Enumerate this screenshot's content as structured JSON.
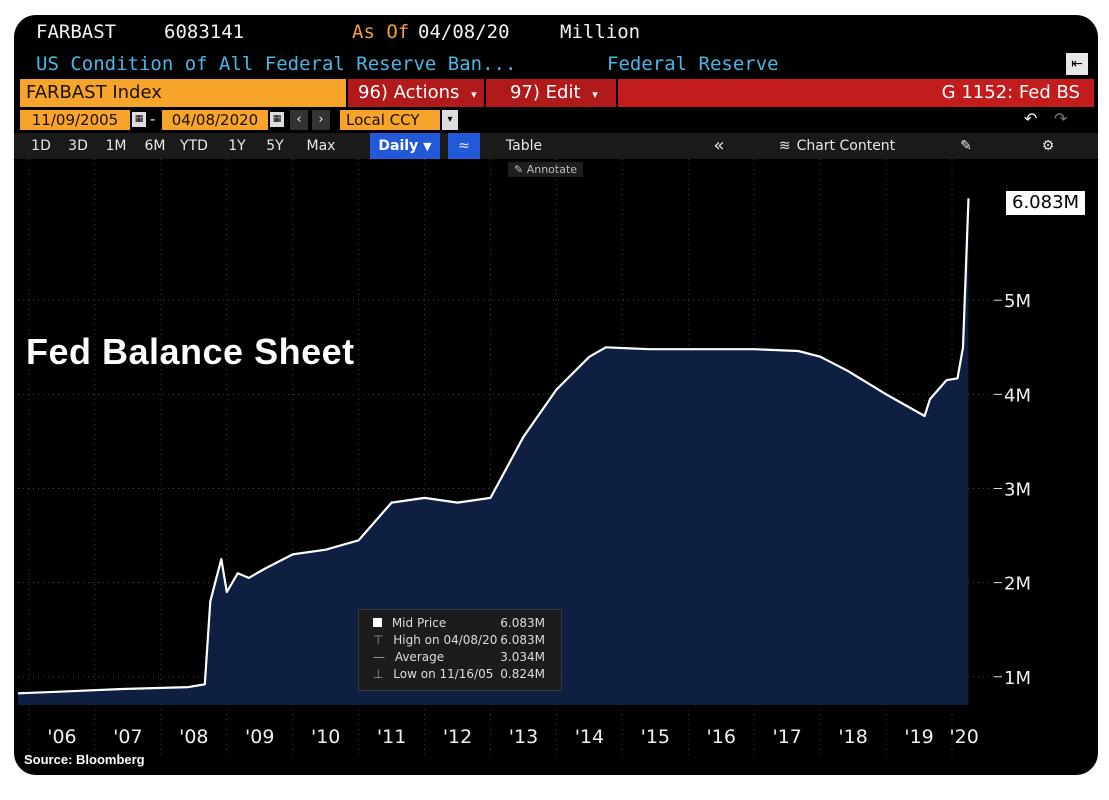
{
  "header": {
    "ticker": "FARBAST",
    "last_value": "6083141",
    "as_of_label": "As Of",
    "as_of_date": "04/08/20",
    "units": "Million",
    "description": "US Condition of All Federal Reserve Ban...",
    "source_name": "Federal Reserve",
    "index_name": "FARBAST Index",
    "actions_label": "96) Actions",
    "edit_label": "97) Edit",
    "function_label": "G 1152: Fed BS",
    "start_date": "11/09/2005",
    "date_separator": "-",
    "end_date": "04/08/2020",
    "currency": "Local CCY"
  },
  "toolbar": {
    "ranges": [
      "1D",
      "3D",
      "1M",
      "6M",
      "YTD",
      "1Y",
      "5Y",
      "Max"
    ],
    "frequency": "Daily",
    "table_label": "Table",
    "chart_content_label": "Chart Content",
    "annotate_label": "Annotate"
  },
  "overlay": {
    "title": "Fed Balance Sheet",
    "source": "Source: Bloomberg",
    "last_price_label": "6.083M"
  },
  "legend": {
    "items": [
      {
        "label": "Mid Price",
        "value": "6.083M"
      },
      {
        "label": "High on 04/08/20",
        "value": "6.083M"
      },
      {
        "label": "Average",
        "value": "3.034M"
      },
      {
        "label": "Low on 11/16/05",
        "value": "0.824M"
      }
    ]
  },
  "colors": {
    "background": "#000000",
    "area_fill": "#0f2145",
    "line": "#ffffff",
    "accent_orange": "#f7a42b",
    "accent_red": "#b01a1a",
    "text_cyan": "#49b7e6"
  },
  "chart_data": {
    "type": "area",
    "title": "Fed Balance Sheet",
    "series": [
      {
        "name": "Mid Price",
        "x": [
          "2005-11",
          "2006-06",
          "2007-06",
          "2008-06",
          "2008-09",
          "2008-10",
          "2008-12",
          "2009-01",
          "2009-03",
          "2009-05",
          "2009-08",
          "2010-01",
          "2010-07",
          "2011-01",
          "2011-07",
          "2012-01",
          "2012-07",
          "2013-01",
          "2013-07",
          "2014-01",
          "2014-07",
          "2014-10",
          "2015-06",
          "2016-01",
          "2016-07",
          "2017-01",
          "2017-09",
          "2018-01",
          "2018-06",
          "2019-01",
          "2019-08",
          "2019-09",
          "2019-12",
          "2020-02",
          "2020-03",
          "2020-04"
        ],
        "y": [
          0.824,
          0.84,
          0.87,
          0.89,
          0.92,
          1.8,
          2.25,
          1.9,
          2.1,
          2.05,
          2.15,
          2.3,
          2.35,
          2.45,
          2.85,
          2.9,
          2.85,
          2.9,
          3.55,
          4.05,
          4.4,
          4.5,
          4.48,
          4.48,
          4.48,
          4.48,
          4.46,
          4.4,
          4.25,
          4.0,
          3.77,
          3.95,
          4.15,
          4.17,
          4.5,
          6.083
        ]
      }
    ],
    "xlabel": "",
    "ylabel": "",
    "x_tick_labels": [
      "'06",
      "'07",
      "'08",
      "'09",
      "'10",
      "'11",
      "'12",
      "'13",
      "'14",
      "'15",
      "'16",
      "'17",
      "'18",
      "'19",
      "'20"
    ],
    "y_tick_labels": [
      "1M",
      "2M",
      "3M",
      "4M",
      "5M"
    ],
    "y_ticks": [
      1,
      2,
      3,
      4,
      5
    ],
    "ylim": [
      0.7,
      6.5
    ],
    "grid": true,
    "y_axis_side": "right"
  }
}
